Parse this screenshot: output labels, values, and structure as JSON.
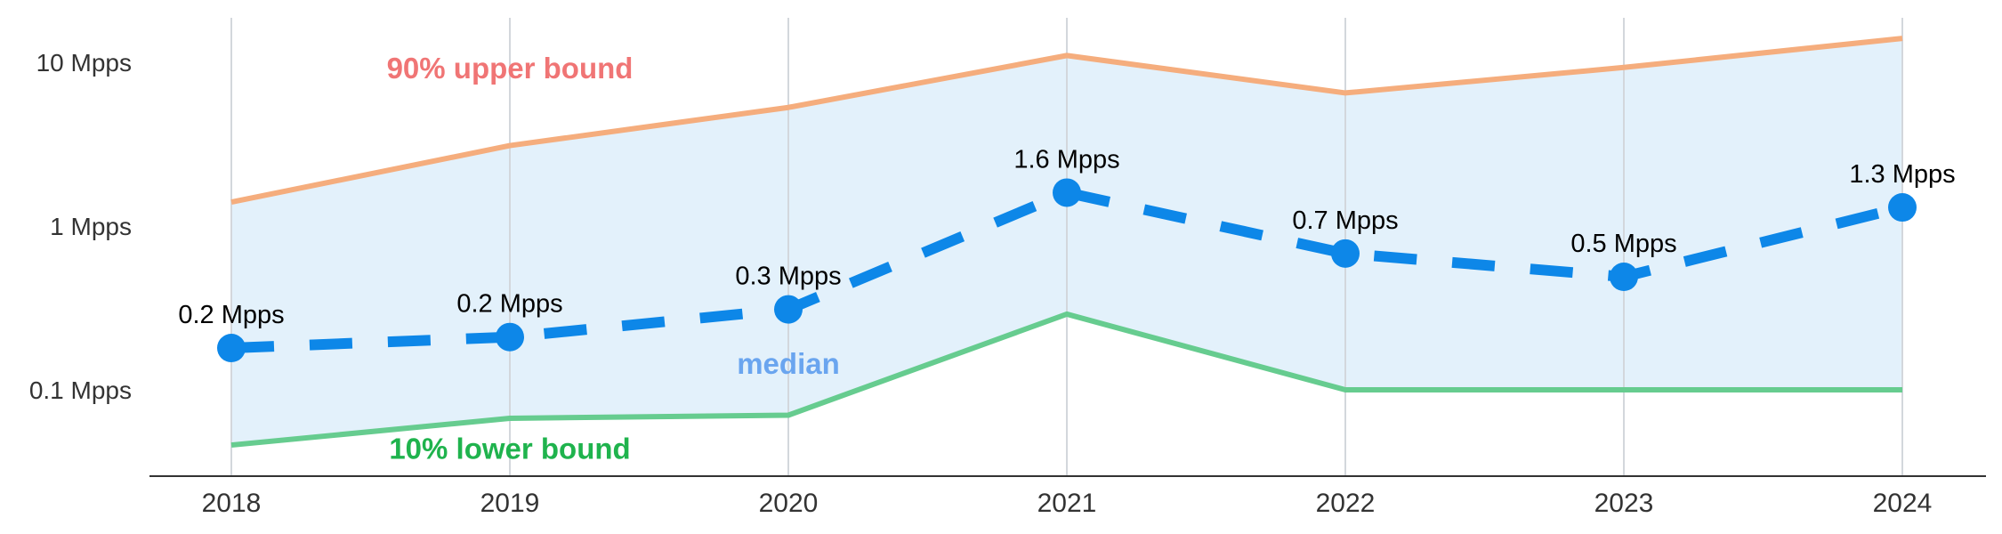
{
  "chart_data": {
    "type": "line",
    "title": "",
    "xlabel": "",
    "ylabel": "",
    "y_scale": "log",
    "ylim": [
      0.045,
      15
    ],
    "x": [
      "2018",
      "2019",
      "2020",
      "2021",
      "2022",
      "2023",
      "2024"
    ],
    "y_ticks": [
      {
        "value": 0.1,
        "label": "0.1 Mpps"
      },
      {
        "value": 1,
        "label": "1 Mpps"
      },
      {
        "value": 10,
        "label": "10 Mpps"
      }
    ],
    "grid": "vertical",
    "series": [
      {
        "key": "upper",
        "values": [
          1.4,
          3.1,
          5.3,
          11.0,
          6.5,
          9.3,
          14.0
        ],
        "color": "#f5ad7d",
        "style": "solid"
      },
      {
        "key": "median",
        "values": [
          0.18,
          0.21,
          0.31,
          1.6,
          0.68,
          0.49,
          1.3
        ],
        "data_labels": [
          "0.2 Mpps",
          "0.2 Mpps",
          "0.3 Mpps",
          "1.6 Mpps",
          "0.7 Mpps",
          "0.5 Mpps",
          "1.3 Mpps"
        ],
        "color": "#0d87e8",
        "style": "dashed",
        "markers": true
      },
      {
        "key": "lower",
        "values": [
          0.046,
          0.067,
          0.07,
          0.29,
          0.1,
          0.1,
          0.1
        ],
        "color": "#66cc8f",
        "style": "solid"
      }
    ],
    "band": {
      "between": [
        "lower",
        "upper"
      ],
      "color": "#e3f1fb"
    },
    "annotations": [
      {
        "text": "90% upper bound",
        "x": 2019,
        "y": 8.0,
        "color": "#f07575"
      },
      {
        "text": "median",
        "x": 2020,
        "y": 0.125,
        "color": "#6aa5ef"
      },
      {
        "text": "10% lower bound",
        "x": 2019,
        "y": 0.038,
        "color": "#1fb34d"
      }
    ]
  }
}
